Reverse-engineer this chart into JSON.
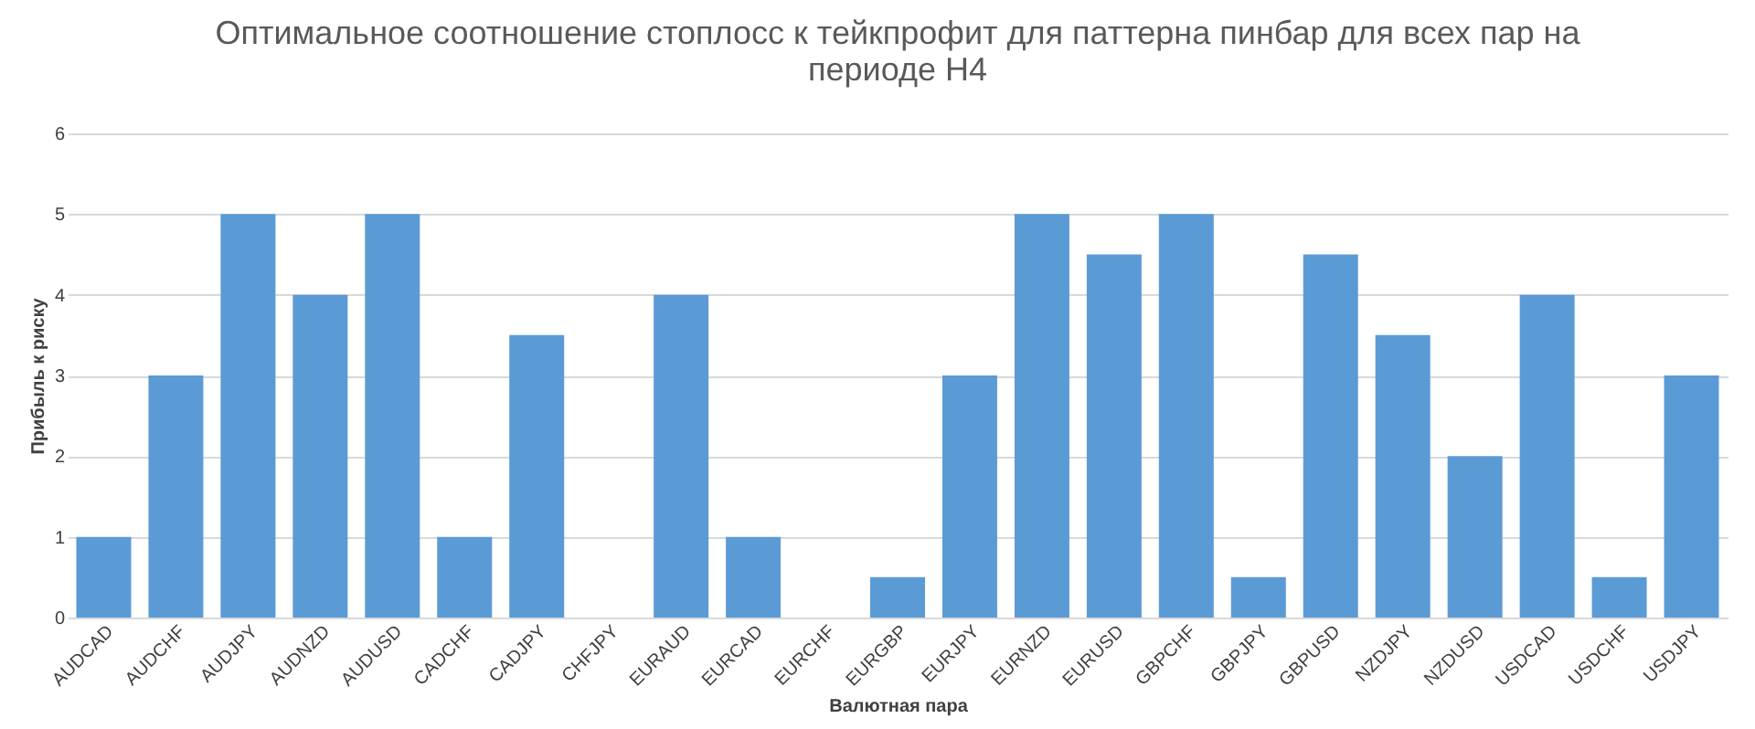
{
  "chart_data": {
    "type": "bar",
    "title": "Оптимальное соотношение стоплосс к тейкпрофит для паттерна пинбар для всех пар на периоде H4",
    "xlabel": "Валютная пара",
    "ylabel": "Прибыль к риску",
    "categories": [
      "AUDCAD",
      "AUDCHF",
      "AUDJPY",
      "AUDNZD",
      "AUDUSD",
      "CADCHF",
      "CADJPY",
      "CHFJPY",
      "EURAUD",
      "EURCAD",
      "EURCHF",
      "EURGBP",
      "EURJPY",
      "EURNZD",
      "EURUSD",
      "GBPCHF",
      "GBPJPY",
      "GBPUSD",
      "NZDJPY",
      "NZDUSD",
      "USDCAD",
      "USDCHF",
      "USDJPY"
    ],
    "values": [
      1,
      3,
      5,
      4,
      5,
      1,
      3.5,
      0,
      4,
      1,
      0,
      0.5,
      3,
      5,
      4.5,
      5,
      0.5,
      4.5,
      3.5,
      2,
      4,
      0.5,
      3
    ],
    "color": "#5b9bd5",
    "ylim": [
      0,
      6
    ],
    "yticks": [
      0,
      1,
      2,
      3,
      4,
      5,
      6
    ],
    "grid": "y"
  }
}
